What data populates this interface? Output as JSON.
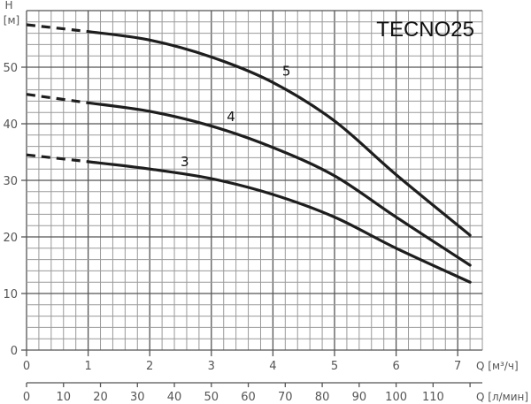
{
  "chart_data": {
    "type": "line",
    "title": "TECNO25",
    "xlabel": "Q [м³/ч]",
    "xlabel_secondary": "Q [л/мин]",
    "ylabel": "H [м]",
    "xlim": [
      0,
      7.4
    ],
    "ylim": [
      0,
      60
    ],
    "grid": true,
    "x_ticks": [
      0,
      1,
      2,
      3,
      4,
      5,
      6,
      7
    ],
    "x_ticks_secondary": [
      0,
      10,
      20,
      30,
      40,
      50,
      60,
      70,
      80,
      90,
      100,
      110,
      120
    ],
    "x_tick_labels_secondary": [
      "0",
      "10",
      "20",
      "30",
      "40",
      "50",
      "60",
      "70",
      "80",
      "90",
      "100",
      "110",
      ""
    ],
    "y_ticks": [
      0,
      10,
      20,
      30,
      40,
      50
    ],
    "series": [
      {
        "name": "5",
        "dashed_until": 1.0,
        "x": [
          0,
          1,
          2,
          3,
          4,
          5,
          6,
          7.2
        ],
        "values": [
          57.5,
          56.3,
          54.8,
          51.8,
          47.3,
          40.5,
          31,
          20.3
        ],
        "label_pos": [
          4.15,
          48.5
        ]
      },
      {
        "name": "4",
        "dashed_until": 1.0,
        "x": [
          0,
          1,
          2,
          3,
          4,
          5,
          6,
          7.2
        ],
        "values": [
          45.2,
          43.7,
          42.2,
          39.6,
          35.8,
          30.8,
          23.5,
          15
        ],
        "label_pos": [
          3.25,
          40.5
        ]
      },
      {
        "name": "3",
        "dashed_until": 1.0,
        "x": [
          0,
          1,
          2,
          3,
          4,
          5,
          6,
          7.2
        ],
        "values": [
          34.5,
          33.3,
          32,
          30.3,
          27.5,
          23.5,
          18,
          12
        ],
        "label_pos": [
          2.5,
          32.5
        ]
      }
    ]
  },
  "labels": {
    "y_unit_top": "H",
    "y_unit_bottom": "[м]",
    "x_unit_primary": "Q [м³/ч]",
    "x_unit_secondary": "Q [л/мин]"
  },
  "colors": {
    "curve": "#1e1e1e",
    "grid_minor": "#9a9a9a",
    "grid_major": "#555555",
    "text": "#555555"
  }
}
